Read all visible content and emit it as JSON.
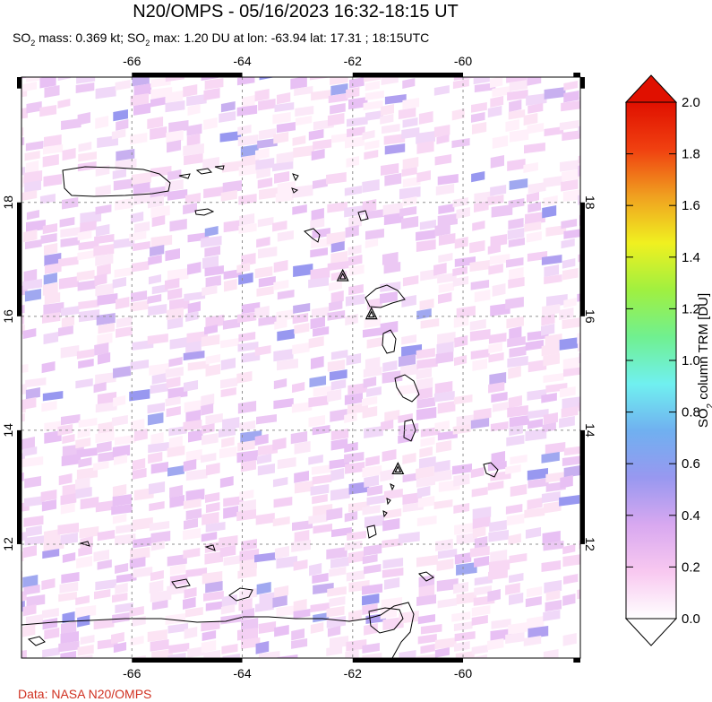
{
  "header": {
    "title": "N20/OMPS - 05/16/2023 16:32-18:15 UT",
    "subtitle_pre": "SO",
    "subtitle_sub": "2",
    "subtitle_mid": " mass: 0.369 kt; SO",
    "subtitle_sub2": "2",
    "subtitle_post": " max: 1.20 DU at lon: -63.94 lat: 17.31 ; 18:15UTC"
  },
  "map": {
    "lon_range": [
      -68.0,
      -57.875
    ],
    "lat_range": [
      10.0,
      20.2
    ],
    "lon_ticks": [
      "-66",
      "-64",
      "-62",
      "-60"
    ],
    "lon_tick_values": [
      -66,
      -64,
      -62,
      -60
    ],
    "lat_ticks": [
      "18",
      "16",
      "14",
      "12"
    ],
    "lat_tick_values": [
      18,
      16,
      14,
      12
    ],
    "gridlines": "dashed",
    "volcano_icon": "triangle-volcano-icon",
    "volcanoes": [
      {
        "lon": -62.18,
        "lat": 16.72
      },
      {
        "lon": -61.66,
        "lat": 16.05
      },
      {
        "lon": -61.18,
        "lat": 13.33
      }
    ]
  },
  "colorbar": {
    "label_pre": "SO",
    "label_sub": "2",
    "label_post": " column TRM [DU]",
    "tick_labels": [
      "2.0",
      "1.8",
      "1.6",
      "1.4",
      "1.2",
      "1.0",
      "0.8",
      "0.6",
      "0.4",
      "0.2",
      "0.0"
    ],
    "tick_values": [
      2.0,
      1.8,
      1.6,
      1.4,
      1.2,
      1.0,
      0.8,
      0.6,
      0.4,
      0.2,
      0.0
    ],
    "range": [
      0.0,
      2.0
    ],
    "colors": [
      "#ffffff",
      "#f8c8f0",
      "#d8a8f0",
      "#9898f0",
      "#70b0f0",
      "#70f0f0",
      "#70f090",
      "#a0f040",
      "#f0f020",
      "#f0a020",
      "#f04010",
      "#e01000"
    ]
  },
  "credit": "Data: NASA N20/OMPS"
}
